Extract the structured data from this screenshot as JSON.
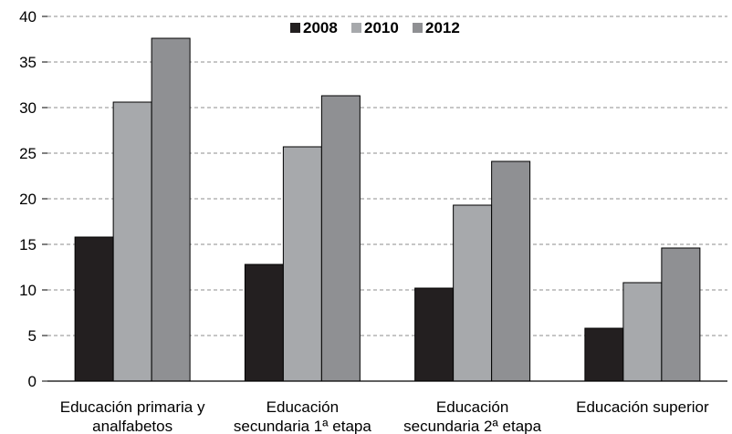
{
  "chart_data": {
    "type": "bar",
    "title": "",
    "xlabel": "",
    "ylabel": "",
    "ylim": [
      0,
      40
    ],
    "yticks": [
      0,
      5,
      10,
      15,
      20,
      25,
      30,
      35,
      40
    ],
    "ytick_labels": [
      "0",
      "5",
      "10",
      "15",
      "20",
      "25",
      "30",
      "35",
      "40"
    ],
    "grid": "horizontal dashed",
    "legend_position": "top-center",
    "categories": [
      [
        "Educación primaria y",
        "analfabetos"
      ],
      [
        "Educación",
        "secundaria 1ª etapa"
      ],
      [
        "Educación",
        "secundaria 2ª etapa"
      ],
      [
        "Educación superior"
      ]
    ],
    "series": [
      {
        "name": "2008",
        "color": "#231f20",
        "values": [
          15.8,
          12.8,
          10.2,
          5.8
        ]
      },
      {
        "name": "2010",
        "color": "#a7a9ac",
        "values": [
          30.6,
          25.7,
          19.3,
          10.8
        ]
      },
      {
        "name": "2012",
        "color": "#8f9093",
        "values": [
          37.6,
          31.3,
          24.1,
          14.6
        ]
      }
    ]
  }
}
